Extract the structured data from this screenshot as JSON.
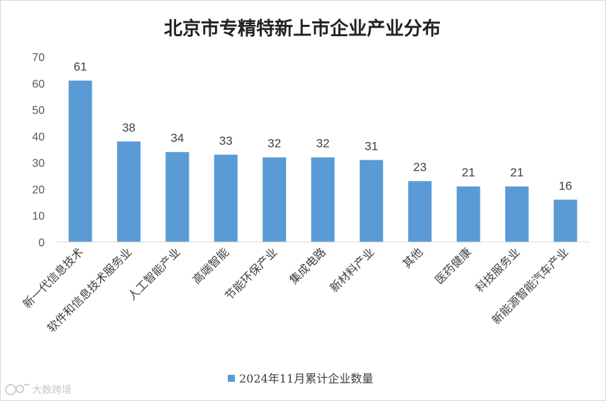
{
  "chart_data": {
    "type": "bar",
    "title": "北京市专精特新上市企业产业分布",
    "categories": [
      "新一代信息技术",
      "软件和信息技术服务业",
      "人工智能产业",
      "高端智能",
      "节能环保产业",
      "集成电路",
      "新材料产业",
      "其他",
      "医药健康",
      "科技服务业",
      "新能源智能汽车产业"
    ],
    "series": [
      {
        "name": "2024年11月累计企业数量",
        "values": [
          61,
          38,
          34,
          33,
          32,
          32,
          31,
          23,
          21,
          21,
          16
        ]
      }
    ],
    "ylim": [
      0,
      70
    ],
    "yticks": [
      0,
      10,
      20,
      30,
      40,
      50,
      60,
      70
    ],
    "grid": false,
    "legend": "bottom",
    "bar_color": "#5b9bd5",
    "data_labels": true
  },
  "watermark": {
    "text": "大数跨境",
    "icon": "watermark-logo-icon"
  }
}
